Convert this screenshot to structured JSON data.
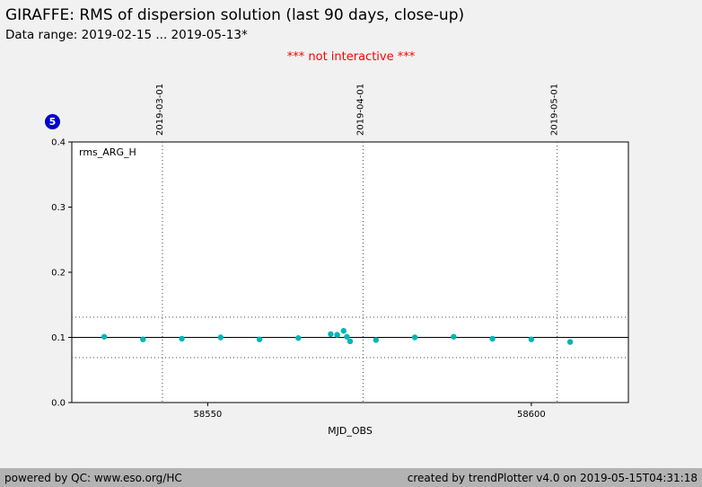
{
  "header": {
    "title": "GIRAFFE: RMS of dispersion solution (last 90 days, close-up)",
    "subtitle": "Data range: 2019-02-15 ... 2019-05-13*",
    "warning": "*** not interactive ***",
    "warning_color": "#ff0000"
  },
  "badge": {
    "label": "5",
    "color": "#0000cc"
  },
  "chart_data": {
    "type": "scatter",
    "title": "GIRAFFE: RMS of dispersion solution (last 90 days, close-up)",
    "series_label": "rms_ARG_H",
    "xlabel": "MJD_OBS",
    "ylabel": "",
    "xlim": [
      58529,
      58615
    ],
    "ylim": [
      0.0,
      0.4
    ],
    "x_ticks": [
      58550,
      58600
    ],
    "y_ticks": [
      0.0,
      0.1,
      0.2,
      0.3,
      0.4
    ],
    "grid": false,
    "legend_position": "none",
    "date_markers": [
      {
        "label": "2019-03-01",
        "mjd": 58543
      },
      {
        "label": "2019-04-01",
        "mjd": 58574
      },
      {
        "label": "2019-05-01",
        "mjd": 58604
      }
    ],
    "reference_line": 0.1,
    "threshold_lines": [
      0.131,
      0.069
    ],
    "point_color": "#00b5b8",
    "points": [
      [
        58534,
        0.101
      ],
      [
        58540,
        0.097
      ],
      [
        58546,
        0.098
      ],
      [
        58552,
        0.1
      ],
      [
        58558,
        0.097
      ],
      [
        58564,
        0.099
      ],
      [
        58569,
        0.105
      ],
      [
        58570,
        0.104
      ],
      [
        58571,
        0.11
      ],
      [
        58571.5,
        0.101
      ],
      [
        58572,
        0.094
      ],
      [
        58576,
        0.096
      ],
      [
        58582,
        0.1
      ],
      [
        58588,
        0.101
      ],
      [
        58594,
        0.098
      ],
      [
        58600,
        0.097
      ],
      [
        58606,
        0.093
      ]
    ]
  },
  "footer": {
    "left": "powered by QC: www.eso.org/HC",
    "right": "created by trendPlotter v4.0 on 2019-05-15T04:31:18"
  }
}
